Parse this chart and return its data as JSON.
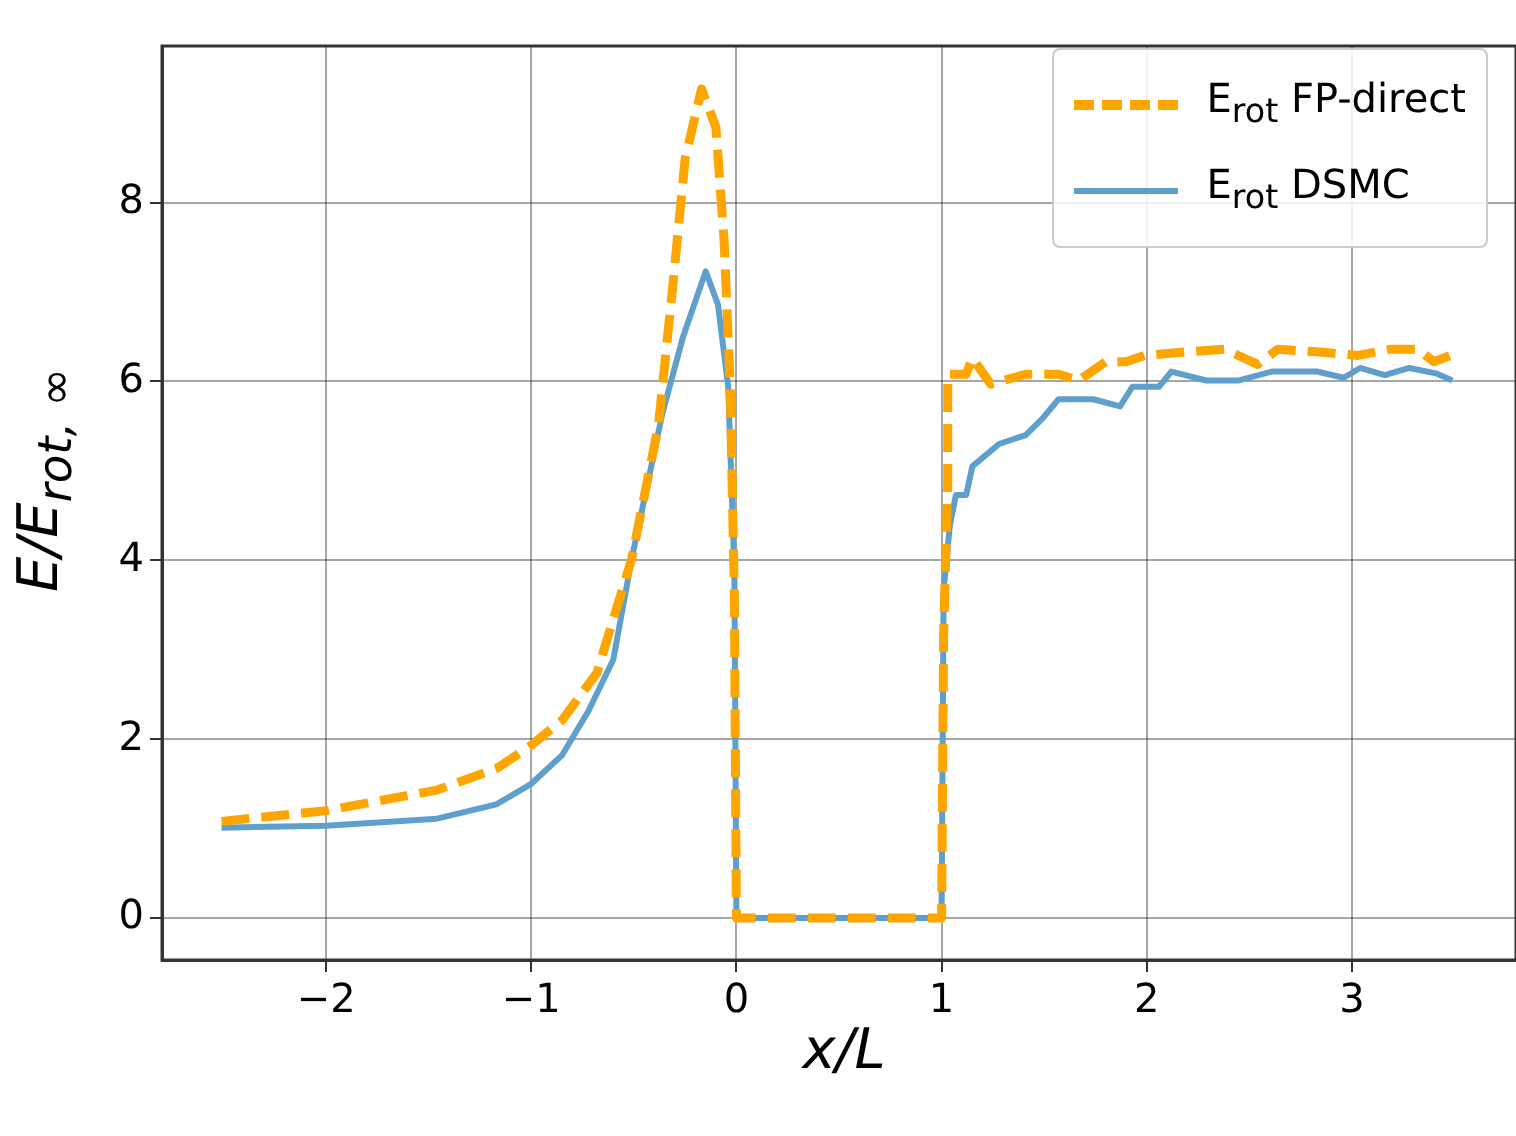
{
  "chart_data": {
    "type": "line",
    "xlabel": "x/L",
    "ylabel": "E/E$_{rot, ∞}$",
    "xlim": [
      -2.8,
      3.8
    ],
    "xticks": [
      {
        "value": -2,
        "label": "−2"
      },
      {
        "value": -1,
        "label": "−1"
      },
      0,
      1,
      2,
      3
    ],
    "ylim": [
      -0.47,
      9.75
    ],
    "yticks": [
      0,
      2,
      4,
      6,
      8
    ],
    "grid": true,
    "legend": "top right",
    "marker": "none",
    "series": [
      {
        "name": "E$_{rot}$ FP-direct",
        "color": "#ffa500",
        "line_style": "dashed",
        "x": [
          -2.51,
          -2,
          -1.46,
          -1.17,
          -1,
          -0.85,
          -0.68,
          -0.51,
          -0.38,
          -0.31,
          -0.25,
          -0.17,
          -0.1,
          -0.06,
          -0.03,
          -0.01,
          0,
          1,
          1.01,
          1.03,
          1.03,
          1.12,
          1.15,
          1.24,
          1.41,
          1.57,
          1.67,
          1.8,
          1.9,
          1.99,
          2.19,
          2.38,
          2.54,
          2.64,
          2.83,
          3.03,
          3.19,
          3.32,
          3.4,
          3.48
        ],
        "values": [
          1.08,
          1.2,
          1.43,
          1.67,
          1.93,
          2.21,
          2.74,
          4.02,
          5.51,
          7.07,
          8.49,
          9.27,
          8.84,
          7.57,
          5.94,
          3.6,
          0,
          0,
          3.17,
          4.87,
          6.08,
          6.08,
          6.26,
          5.97,
          6.08,
          6.08,
          6.01,
          6.22,
          6.22,
          6.29,
          6.33,
          6.36,
          6.19,
          6.36,
          6.33,
          6.29,
          6.36,
          6.36,
          6.22,
          6.29
        ]
      },
      {
        "name": "E$_{rot}$ DSMC",
        "color": "#5f9fcc",
        "line_style": "solid",
        "x": [
          -2.51,
          -2,
          -1.46,
          -1.17,
          -1,
          -0.85,
          -0.72,
          -0.6,
          -0.51,
          -0.36,
          -0.26,
          -0.15,
          -0.09,
          -0.04,
          -0.01,
          0,
          1,
          1.01,
          1.04,
          1.07,
          1.12,
          1.15,
          1.28,
          1.41,
          1.49,
          1.57,
          1.74,
          1.87,
          1.93,
          2.06,
          2.12,
          2.29,
          2.45,
          2.61,
          2.83,
          2.96,
          3.04,
          3.16,
          3.28,
          3.41,
          3.49
        ],
        "values": [
          1.01,
          1.03,
          1.11,
          1.27,
          1.5,
          1.82,
          2.32,
          2.89,
          4.02,
          5.65,
          6.5,
          7.23,
          6.86,
          5.94,
          3.89,
          0,
          0,
          3.67,
          4.38,
          4.73,
          4.73,
          5.05,
          5.3,
          5.4,
          5.58,
          5.8,
          5.8,
          5.72,
          5.94,
          5.94,
          6.11,
          6.01,
          6.01,
          6.11,
          6.11,
          6.04,
          6.15,
          6.07,
          6.15,
          6.09,
          6.01
        ]
      }
    ]
  }
}
